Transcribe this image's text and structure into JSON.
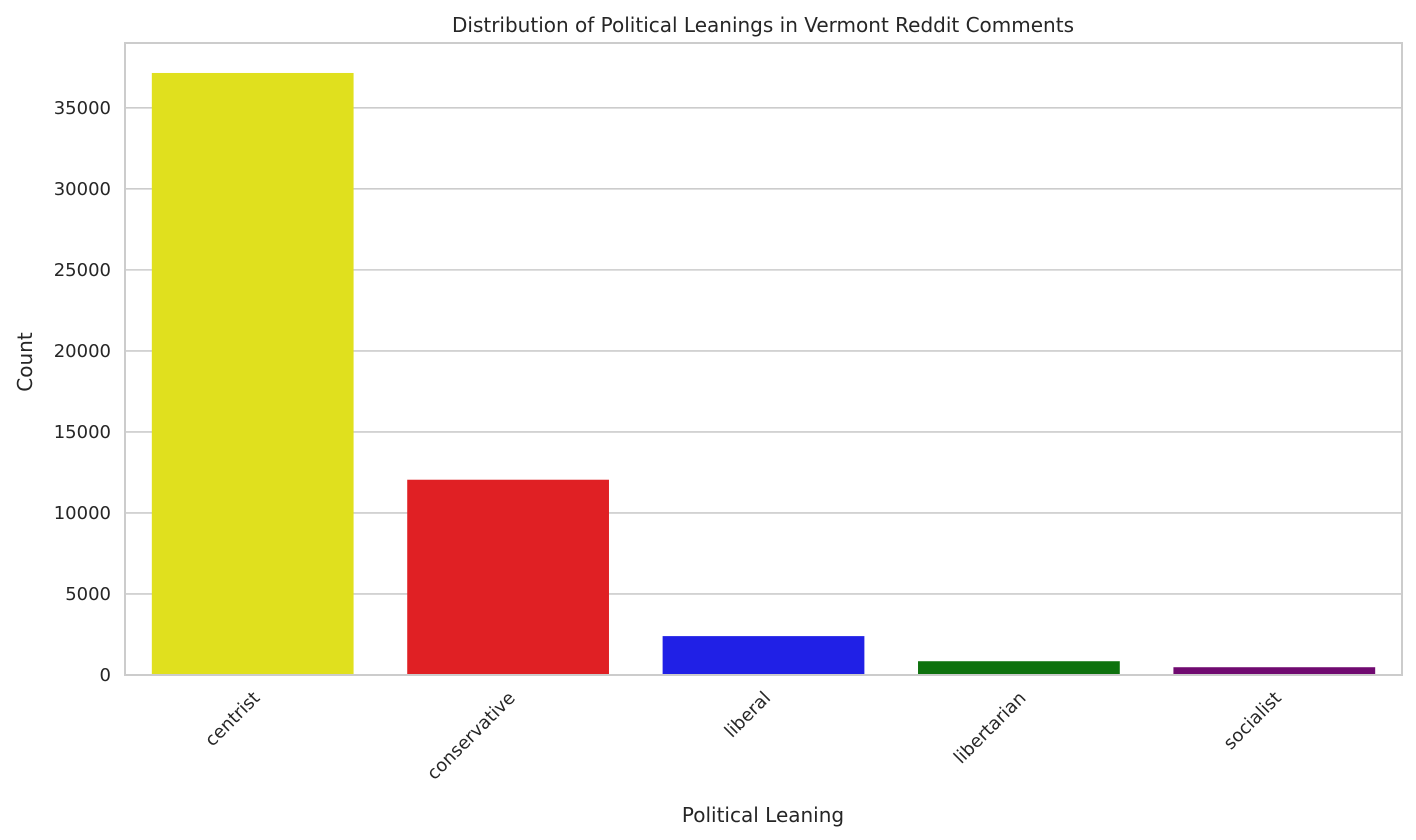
{
  "chart_data": {
    "type": "bar",
    "title": "Distribution of Political Leanings in Vermont Reddit Comments",
    "xlabel": "Political Leaning",
    "ylabel": "Count",
    "categories": [
      "centrist",
      "conservative",
      "liberal",
      "libertarian",
      "socialist"
    ],
    "values": [
      37150,
      12050,
      2400,
      850,
      480
    ],
    "colors": [
      "#e0e01e",
      "#e02024",
      "#2020e6",
      "#0e720e",
      "#700a70"
    ],
    "yticks": [
      0,
      5000,
      10000,
      15000,
      20000,
      25000,
      30000,
      35000
    ],
    "ylim": [
      0,
      39000
    ],
    "grid": "y",
    "legend": "none"
  }
}
